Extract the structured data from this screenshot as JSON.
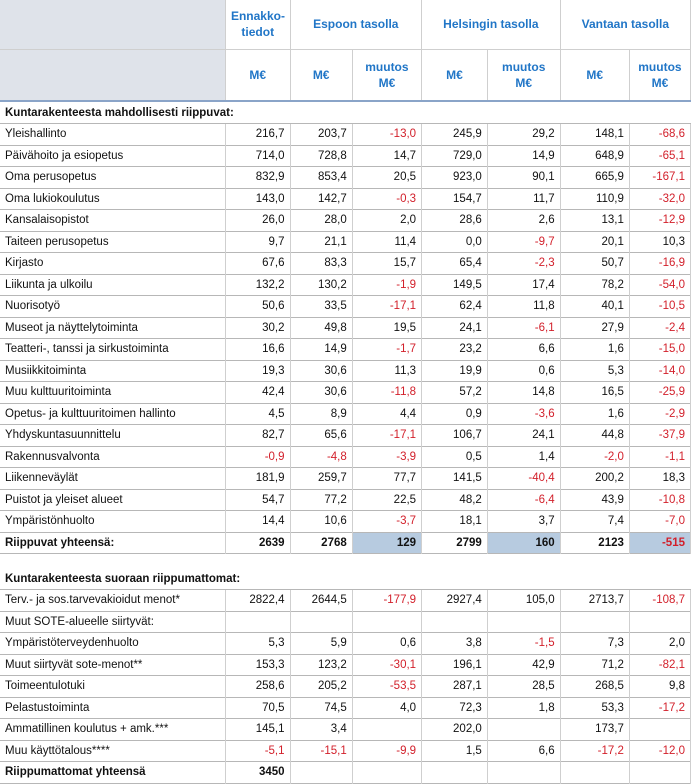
{
  "headers": {
    "ennakko": "Ennakko-\ntiedot",
    "espoo": "Espoon tasolla",
    "helsinki": "Helsingin  tasolla",
    "vantaa": "Vantaan tasolla",
    "me": "M€",
    "muutos": "muutos M€"
  },
  "section1": {
    "title": "Kuntarakenteesta mahdollisesti riippuvat:",
    "rows": [
      [
        "Yleishallinto",
        "216,7",
        "203,7",
        "-13,0",
        "245,9",
        "29,2",
        "148,1",
        "-68,6"
      ],
      [
        "Päivähoito ja esiopetus",
        "714,0",
        "728,8",
        "14,7",
        "729,0",
        "14,9",
        "648,9",
        "-65,1"
      ],
      [
        "Oma perusopetus",
        "832,9",
        "853,4",
        "20,5",
        "923,0",
        "90,1",
        "665,9",
        "-167,1"
      ],
      [
        "Oma lukiokoulutus",
        "143,0",
        "142,7",
        "-0,3",
        "154,7",
        "11,7",
        "110,9",
        "-32,0"
      ],
      [
        "Kansalaisopistot",
        "26,0",
        "28,0",
        "2,0",
        "28,6",
        "2,6",
        "13,1",
        "-12,9"
      ],
      [
        "Taiteen perusopetus",
        "9,7",
        "21,1",
        "11,4",
        "0,0",
        "-9,7",
        "20,1",
        "10,3"
      ],
      [
        "Kirjasto",
        "67,6",
        "83,3",
        "15,7",
        "65,4",
        "-2,3",
        "50,7",
        "-16,9"
      ],
      [
        "Liikunta ja ulkoilu",
        "132,2",
        "130,2",
        "-1,9",
        "149,5",
        "17,4",
        "78,2",
        "-54,0"
      ],
      [
        "Nuorisotyö",
        "50,6",
        "33,5",
        "-17,1",
        "62,4",
        "11,8",
        "40,1",
        "-10,5"
      ],
      [
        "Museot ja näyttelytoiminta",
        "30,2",
        "49,8",
        "19,5",
        "24,1",
        "-6,1",
        "27,9",
        "-2,4"
      ],
      [
        "Teatteri-, tanssi ja sirkustoiminta",
        "16,6",
        "14,9",
        "-1,7",
        "23,2",
        "6,6",
        "1,6",
        "-15,0"
      ],
      [
        "Musiikkitoiminta",
        "19,3",
        "30,6",
        "11,3",
        "19,9",
        "0,6",
        "5,3",
        "-14,0"
      ],
      [
        "Muu kulttuuritoiminta",
        "42,4",
        "30,6",
        "-11,8",
        "57,2",
        "14,8",
        "16,5",
        "-25,9"
      ],
      [
        "Opetus- ja kulttuuritoimen hallinto",
        "4,5",
        "8,9",
        "4,4",
        "0,9",
        "-3,6",
        "1,6",
        "-2,9"
      ],
      [
        "Yhdyskuntasuunnittelu",
        "82,7",
        "65,6",
        "-17,1",
        "106,7",
        "24,1",
        "44,8",
        "-37,9"
      ],
      [
        "Rakennusvalvonta",
        "-0,9",
        "-4,8",
        "-3,9",
        "0,5",
        "1,4",
        "-2,0",
        "-1,1"
      ],
      [
        "Liikenneväylät",
        "181,9",
        "259,7",
        "77,7",
        "141,5",
        "-40,4",
        "200,2",
        "18,3"
      ],
      [
        "Puistot ja yleiset alueet",
        "54,7",
        "77,2",
        "22,5",
        "48,2",
        "-6,4",
        "43,9",
        "-10,8"
      ],
      [
        "Ympäristönhuolto",
        "14,4",
        "10,6",
        "-3,7",
        "18,1",
        "3,7",
        "7,4",
        "-7,0"
      ]
    ],
    "total": [
      "Riippuvat yhteensä:",
      "2639",
      "2768",
      "129",
      "2799",
      "160",
      "2123",
      "-515"
    ]
  },
  "section2": {
    "title": "Kuntarakenteesta suoraan riippumattomat:",
    "rows": [
      [
        "Terv.- ja sos.tarvevakioidut menot*",
        "2822,4",
        "2644,5",
        "-177,9",
        "2927,4",
        "105,0",
        "2713,7",
        "-108,7"
      ],
      [
        "Muut SOTE-alueelle siirtyvät:",
        "",
        "",
        "",
        "",
        "",
        "",
        ""
      ],
      [
        "Ympäristöterveydenhuolto",
        "5,3",
        "5,9",
        "0,6",
        "3,8",
        "-1,5",
        "7,3",
        "2,0"
      ],
      [
        "Muut siirtyvät sote-menot**",
        "153,3",
        "123,2",
        "-30,1",
        "196,1",
        "42,9",
        "71,2",
        "-82,1"
      ],
      [
        "Toimeentulotuki",
        "258,6",
        "205,2",
        "-53,5",
        "287,1",
        "28,5",
        "268,5",
        "9,8"
      ],
      [
        "Pelastustoiminta",
        "70,5",
        "74,5",
        "4,0",
        "72,3",
        "1,8",
        "53,3",
        "-17,2"
      ],
      [
        "Ammatillinen koulutus + amk.***",
        "145,1",
        "3,4",
        "",
        "202,0",
        "",
        "173,7",
        ""
      ],
      [
        "Muu käyttötalous****",
        "-5,1",
        "-15,1",
        "-9,9",
        "1,5",
        "6,6",
        "-17,2",
        "-12,0"
      ]
    ],
    "total": [
      "Riippumattomat yhteensä",
      "3450",
      "",
      "",
      "",
      "",
      "",
      ""
    ]
  }
}
